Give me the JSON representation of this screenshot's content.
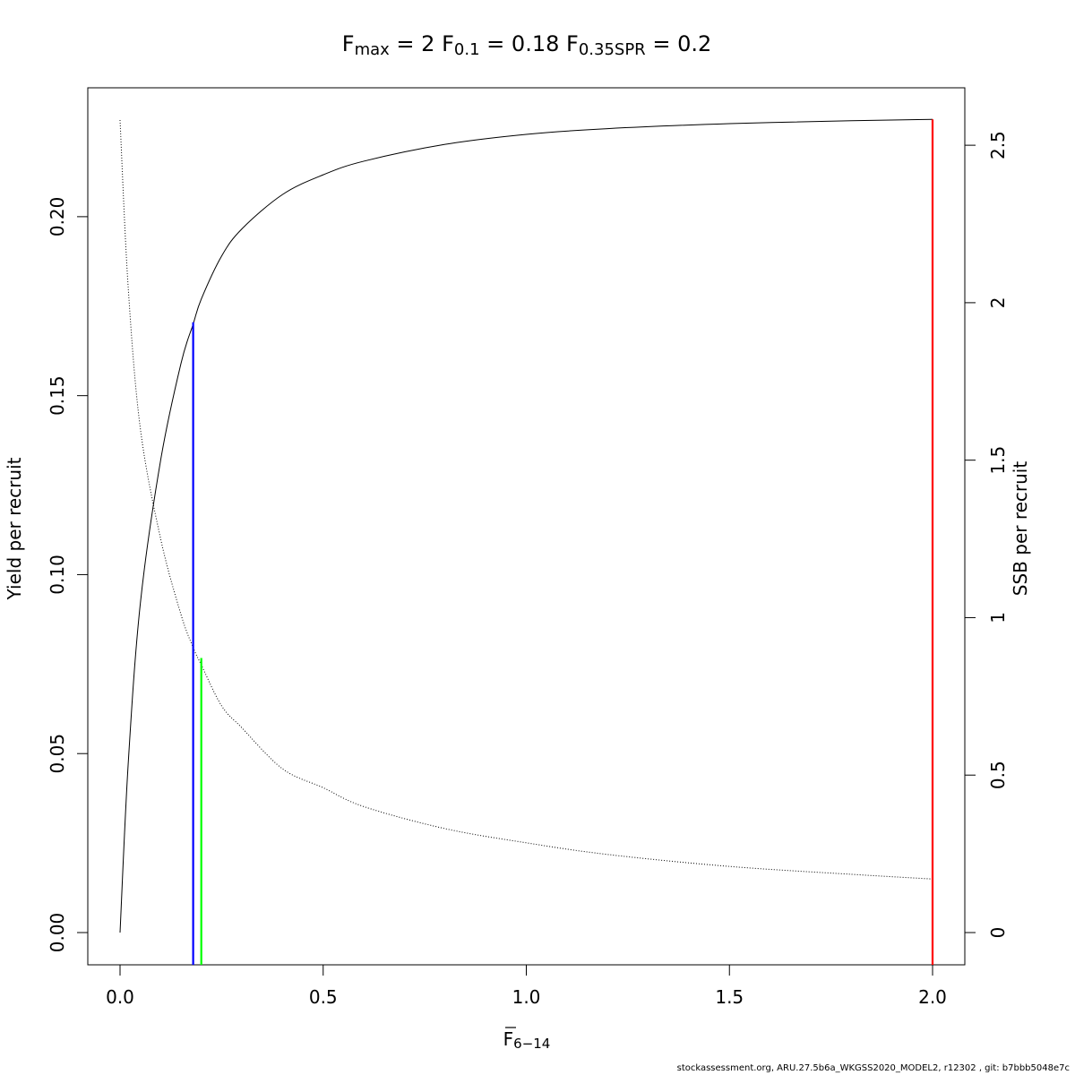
{
  "chart_data": {
    "type": "line",
    "title": {
      "fmax": {
        "symbol": "F",
        "subscript": "max",
        "value": "2"
      },
      "f01": {
        "symbol": "F",
        "subscript": "0.1",
        "value": "0.18"
      },
      "f035spr": {
        "symbol": "F",
        "subscript": "0.35SPR",
        "value": "0.2"
      }
    },
    "xlabel": {
      "symbol": "F",
      "subscript": "6−14",
      "overline": true
    },
    "ylabel_left": "Yield per recruit",
    "ylabel_right": "SSB per recruit",
    "xlim": [
      0,
      2
    ],
    "ylim_left": [
      0,
      0.227
    ],
    "ylim_right": [
      0,
      2.58
    ],
    "x_ticks": [
      "0.0",
      "0.5",
      "1.0",
      "1.5",
      "2.0"
    ],
    "y_left_ticks": [
      "0.00",
      "0.05",
      "0.10",
      "0.15",
      "0.20"
    ],
    "y_right_ticks": [
      "0",
      "0.5",
      "1",
      "1.5",
      "2",
      "2.5"
    ],
    "grid": false,
    "series": [
      {
        "axis": "left",
        "line_style": "solid",
        "color": "#000000",
        "x": [
          0,
          0.02,
          0.05,
          0.1,
          0.15,
          0.18,
          0.2,
          0.25,
          0.3,
          0.4,
          0.5,
          0.6,
          0.8,
          1.0,
          1.2,
          1.5,
          1.8,
          2.0
        ],
        "y": [
          0,
          0.047,
          0.092,
          0.132,
          0.159,
          0.17,
          0.177,
          0.189,
          0.1966,
          0.2062,
          0.2117,
          0.2155,
          0.2202,
          0.223,
          0.2246,
          0.226,
          0.2268,
          0.2272
        ]
      },
      {
        "axis": "right",
        "line_style": "dotted",
        "color": "#000000",
        "x": [
          0,
          0.02,
          0.05,
          0.1,
          0.15,
          0.18,
          0.2,
          0.25,
          0.3,
          0.4,
          0.5,
          0.6,
          0.8,
          1.0,
          1.2,
          1.5,
          1.8,
          2.0
        ],
        "y": [
          2.58,
          2.05,
          1.6,
          1.25,
          1.01,
          0.905,
          0.85,
          0.72,
          0.65,
          0.52,
          0.46,
          0.4,
          0.33,
          0.285,
          0.248,
          0.21,
          0.185,
          0.17
        ]
      }
    ],
    "reference_lines": [
      {
        "name": "F0.1",
        "x": 0.18,
        "y_top": 0.1705,
        "axis": "left",
        "color": "#0000FF"
      },
      {
        "name": "F0.35SPR",
        "x": 0.2,
        "y_top": 0.872,
        "axis": "right",
        "color": "#00FF00"
      },
      {
        "name": "Fmax",
        "x": 2.0,
        "y_top": 0.2272,
        "axis": "left",
        "color": "#FF0000"
      }
    ]
  },
  "footer": "stockassessment.org, ARU.27.5b6a_WKGSS2020_MODEL2, r12302 , git: b7bbb5048e7c"
}
